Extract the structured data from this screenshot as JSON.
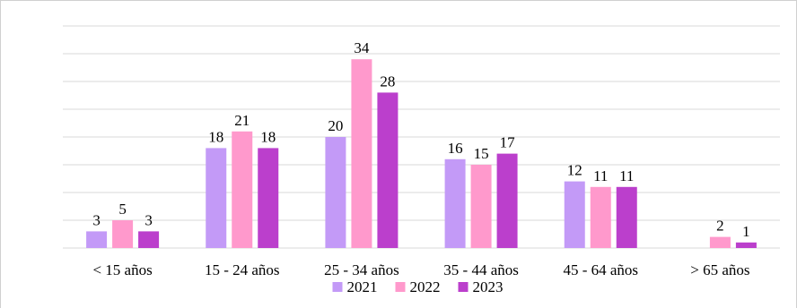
{
  "chart_data": {
    "type": "bar",
    "title": "",
    "xlabel": "",
    "ylabel": "",
    "categories": [
      "< 15 años",
      "15 - 24 años",
      "25 - 34 años",
      "35 - 44 años",
      "45 - 64 años",
      "> 65 años"
    ],
    "series": [
      {
        "name": "2021",
        "color": "#c39af7",
        "values": [
          3,
          18,
          20,
          16,
          12,
          null
        ]
      },
      {
        "name": "2022",
        "color": "#ff99cc",
        "values": [
          5,
          21,
          34,
          15,
          11,
          2
        ]
      },
      {
        "name": "2023",
        "color": "#bb3fcc",
        "values": [
          3,
          18,
          28,
          17,
          11,
          1
        ]
      }
    ],
    "ylim": [
      0,
      40
    ],
    "grid": true,
    "legend_position": "bottom"
  }
}
